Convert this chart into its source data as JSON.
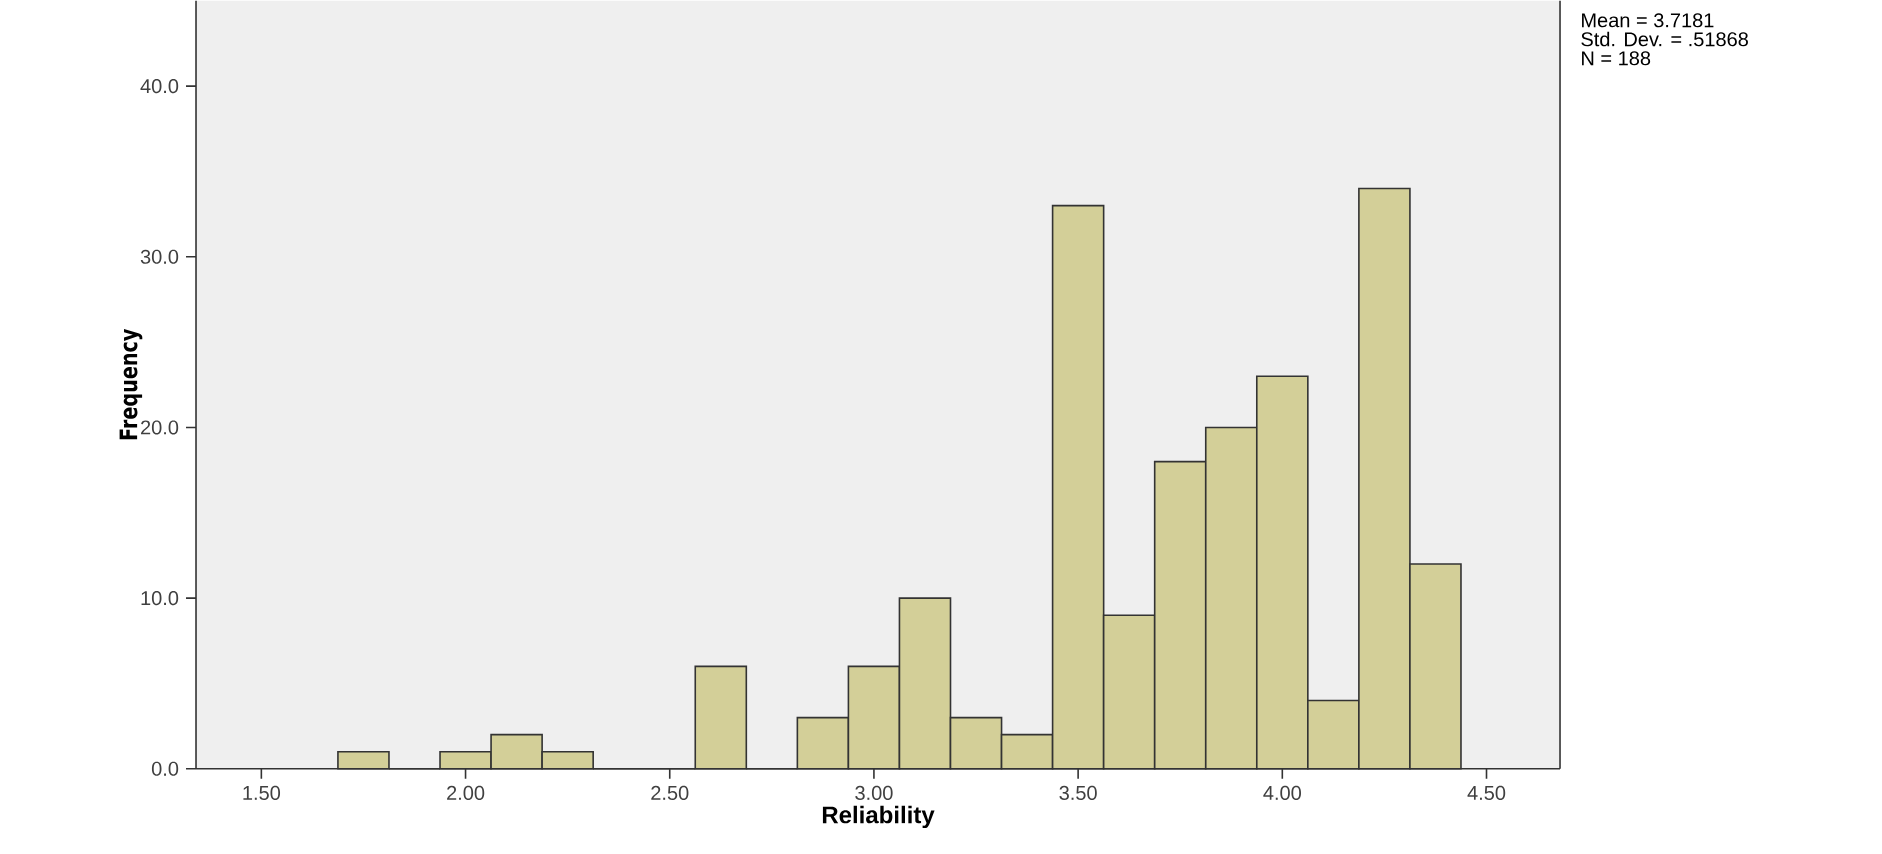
{
  "chart_data": {
    "type": "histogram",
    "xlabel": "Reliability",
    "ylabel": "Frequency",
    "bins": [
      1.6875,
      1.8125,
      1.9375,
      2.0625,
      2.1875,
      2.3125,
      2.4375,
      2.5625,
      2.6875,
      2.8125,
      2.9375,
      3.0625,
      3.1875,
      3.3125,
      3.4375,
      3.5625,
      3.6875,
      3.8125,
      3.9375,
      4.0625,
      4.1875,
      4.3125,
      4.4375
    ],
    "values": [
      1,
      0,
      1,
      2,
      1,
      0,
      0,
      6,
      0,
      3,
      6,
      10,
      3,
      2,
      33,
      9,
      18,
      20,
      23,
      4,
      34,
      12
    ],
    "color": "#d3cf98",
    "xlim": [
      1.34,
      4.68
    ],
    "ylim": [
      0,
      45
    ],
    "xticks": [
      {
        "value": 1.5,
        "label": "1.50"
      },
      {
        "value": 2.0,
        "label": "2.00"
      },
      {
        "value": 2.5,
        "label": "2.50"
      },
      {
        "value": 3.0,
        "label": "3.00"
      },
      {
        "value": 3.5,
        "label": "3.50"
      },
      {
        "value": 4.0,
        "label": "4.00"
      },
      {
        "value": 4.5,
        "label": "4.50"
      }
    ],
    "yticks": [
      {
        "value": 0,
        "label": "0.0"
      },
      {
        "value": 10,
        "label": "10.0"
      },
      {
        "value": 20,
        "label": "20.0"
      },
      {
        "value": 30,
        "label": "30.0"
      },
      {
        "value": 40,
        "label": "40.0"
      }
    ],
    "annotations": [
      "Mean = 3.7181",
      "Std. Dev. = .51868",
      "N = 188"
    ],
    "grid": false
  }
}
